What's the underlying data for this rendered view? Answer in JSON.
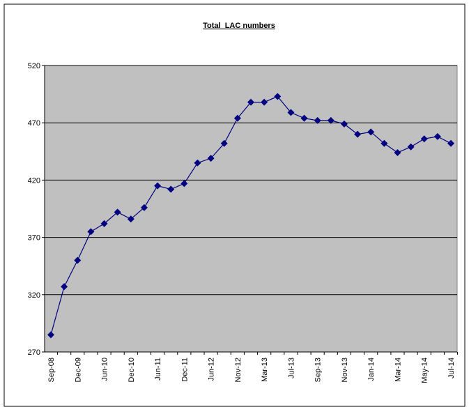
{
  "chart_data": {
    "type": "line",
    "title": "Total  LAC numbers",
    "categories": [
      "Sep-08",
      null,
      "Dec-09",
      null,
      "Jun-10",
      null,
      "Dec-10",
      null,
      "Jun-11",
      null,
      "Dec-11",
      null,
      "Jun-12",
      null,
      "Nov-12",
      null,
      "Mar-13",
      null,
      "Jul-13",
      null,
      "Sep-13",
      null,
      "Nov-13",
      null,
      "Jan-14",
      null,
      "Mar-14",
      null,
      "May-14",
      null,
      "Jul-14"
    ],
    "values": [
      285,
      327,
      350,
      375,
      382,
      392,
      386,
      396,
      415,
      412,
      417,
      435,
      439,
      452,
      474,
      488,
      488,
      493,
      479,
      474,
      472,
      472,
      469,
      460,
      462,
      452,
      444,
      449,
      456,
      458,
      452
    ],
    "color": "#000080",
    "ylim": [
      270,
      520
    ],
    "yticks": [
      270,
      320,
      370,
      420,
      470,
      520
    ],
    "grid": true
  }
}
